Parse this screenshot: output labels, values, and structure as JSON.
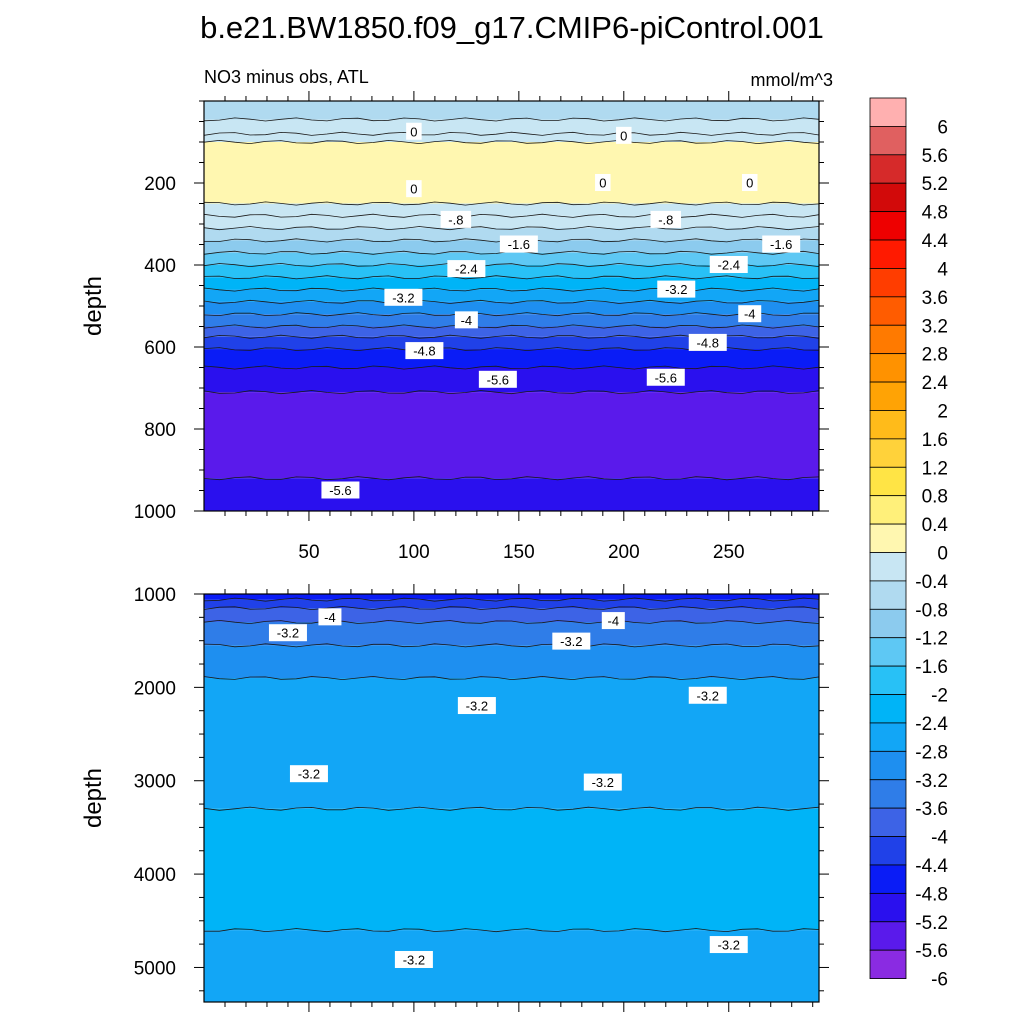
{
  "title": "b.e21.BW1850.f09_g17.CMIP6-piControl.001",
  "colors": {
    "neg": [
      "#8a2be2",
      "#5a1aeb",
      "#2a10ee",
      "#0a1cf6",
      "#2041e8",
      "#3d63e6",
      "#2f7de8",
      "#1e8ff0",
      "#12a6f6",
      "#00b4f7",
      "#28c1f6",
      "#5ec8f4",
      "#8ccbee",
      "#b0daf0",
      "#c8e6f3"
    ],
    "pos": [
      "#fff7b0",
      "#fff07a",
      "#ffe445",
      "#ffd23a",
      "#ffbb1a",
      "#ffa305",
      "#ff9200",
      "#ff7a00",
      "#ff5c00",
      "#ff3d00",
      "#ff1a00",
      "#ee0000",
      "#d20a0a",
      "#d62a2a",
      "#e06060",
      "#ffb0b0"
    ]
  },
  "chart_data": [
    {
      "type": "contour",
      "panel": "upper",
      "subtitle_left": "NO3 minus obs, ATL",
      "subtitle_right": "mmol/m^3",
      "ylabel": "depth",
      "xlabel": "",
      "xlim": [
        0,
        293
      ],
      "ylim": [
        1000,
        0
      ],
      "x_ticks": [
        50,
        100,
        150,
        200,
        250
      ],
      "x_tick_labels": [
        "50",
        "100",
        "150",
        "200",
        "250"
      ],
      "y_ticks": [
        200,
        400,
        600,
        800,
        1000
      ],
      "y_tick_labels": [
        "200",
        "400",
        "600",
        "800",
        "1000"
      ],
      "bands": [
        {
          "top": 0,
          "bottom": 45,
          "level": -1.0
        },
        {
          "top": 45,
          "bottom": 80,
          "level": -0.6
        },
        {
          "top": 80,
          "bottom": 100,
          "level": -0.2
        },
        {
          "top": 100,
          "bottom": 250,
          "level": 0.2
        },
        {
          "top": 250,
          "bottom": 280,
          "level": -0.2
        },
        {
          "top": 280,
          "bottom": 310,
          "level": -0.6
        },
        {
          "top": 310,
          "bottom": 340,
          "level": -1.0
        },
        {
          "top": 340,
          "bottom": 370,
          "level": -1.4
        },
        {
          "top": 370,
          "bottom": 400,
          "level": -1.8
        },
        {
          "top": 400,
          "bottom": 430,
          "level": -2.2
        },
        {
          "top": 430,
          "bottom": 460,
          "level": -2.6
        },
        {
          "top": 460,
          "bottom": 490,
          "level": -3.0
        },
        {
          "top": 490,
          "bottom": 520,
          "level": -3.4
        },
        {
          "top": 520,
          "bottom": 550,
          "level": -3.8
        },
        {
          "top": 550,
          "bottom": 575,
          "level": -4.2
        },
        {
          "top": 575,
          "bottom": 605,
          "level": -4.6
        },
        {
          "top": 605,
          "bottom": 650,
          "level": -5.0
        },
        {
          "top": 650,
          "bottom": 710,
          "level": -5.4
        },
        {
          "top": 710,
          "bottom": 920,
          "level": -5.8
        },
        {
          "top": 920,
          "bottom": 1000,
          "level": -5.4
        }
      ],
      "contour_labels": [
        {
          "text": "0",
          "x": 100,
          "y": 75
        },
        {
          "text": "0",
          "x": 200,
          "y": 85
        },
        {
          "text": "0",
          "x": 100,
          "y": 215
        },
        {
          "text": "0",
          "x": 190,
          "y": 200
        },
        {
          "text": "0",
          "x": 260,
          "y": 200
        },
        {
          "text": "-.8",
          "x": 120,
          "y": 290
        },
        {
          "text": "-.8",
          "x": 220,
          "y": 290
        },
        {
          "text": "-1.6",
          "x": 150,
          "y": 350
        },
        {
          "text": "-1.6",
          "x": 275,
          "y": 350
        },
        {
          "text": "-2.4",
          "x": 125,
          "y": 410
        },
        {
          "text": "-2.4",
          "x": 250,
          "y": 400
        },
        {
          "text": "-3.2",
          "x": 95,
          "y": 480
        },
        {
          "text": "-3.2",
          "x": 225,
          "y": 460
        },
        {
          "text": "-4",
          "x": 125,
          "y": 535
        },
        {
          "text": "-4",
          "x": 260,
          "y": 520
        },
        {
          "text": "-4.8",
          "x": 105,
          "y": 610
        },
        {
          "text": "-4.8",
          "x": 240,
          "y": 590
        },
        {
          "text": "-5.6",
          "x": 140,
          "y": 680
        },
        {
          "text": "-5.6",
          "x": 220,
          "y": 675
        },
        {
          "text": "-5.6",
          "x": 65,
          "y": 950
        }
      ]
    },
    {
      "type": "contour",
      "panel": "lower",
      "ylabel": "depth",
      "xlabel": "",
      "xlim": [
        0,
        293
      ],
      "ylim": [
        5370,
        1000
      ],
      "y_ticks": [
        1000,
        2000,
        3000,
        4000,
        5000
      ],
      "y_tick_labels": [
        "1000",
        "2000",
        "3000",
        "4000",
        "5000"
      ],
      "bands": [
        {
          "top": 1000,
          "bottom": 1060,
          "level": -5.0
        },
        {
          "top": 1060,
          "bottom": 1150,
          "level": -4.6
        },
        {
          "top": 1150,
          "bottom": 1300,
          "level": -4.2
        },
        {
          "top": 1300,
          "bottom": 1550,
          "level": -3.8
        },
        {
          "top": 1550,
          "bottom": 1900,
          "level": -3.4
        },
        {
          "top": 1900,
          "bottom": 3300,
          "level": -3.0
        },
        {
          "top": 3300,
          "bottom": 4600,
          "level": -2.6
        },
        {
          "top": 4600,
          "bottom": 5370,
          "level": -3.0
        }
      ],
      "contour_labels": [
        {
          "text": "-4",
          "x": 60,
          "y": 1250
        },
        {
          "text": "-4",
          "x": 195,
          "y": 1290
        },
        {
          "text": "-3.2",
          "x": 40,
          "y": 1420
        },
        {
          "text": "-3.2",
          "x": 175,
          "y": 1510
        },
        {
          "text": "-3.2",
          "x": 130,
          "y": 2200
        },
        {
          "text": "-3.2",
          "x": 240,
          "y": 2090
        },
        {
          "text": "-3.2",
          "x": 50,
          "y": 2930
        },
        {
          "text": "-3.2",
          "x": 190,
          "y": 3020
        },
        {
          "text": "-3.2",
          "x": 100,
          "y": 4920
        },
        {
          "text": "-3.2",
          "x": 250,
          "y": 4760
        }
      ]
    },
    {
      "type": "colorbar",
      "tick_labels": [
        "6",
        "5.6",
        "5.2",
        "4.8",
        "4.4",
        "4",
        "3.6",
        "3.2",
        "2.8",
        "2.4",
        "2",
        "1.6",
        "1.2",
        "0.8",
        "0.4",
        "0",
        "-0.4",
        "-0.8",
        "-1.2",
        "-1.6",
        "-2",
        "-2.4",
        "-2.8",
        "-3.2",
        "-3.6",
        "-4",
        "-4.4",
        "-4.8",
        "-5.2",
        "-5.6",
        "-6"
      ]
    }
  ]
}
